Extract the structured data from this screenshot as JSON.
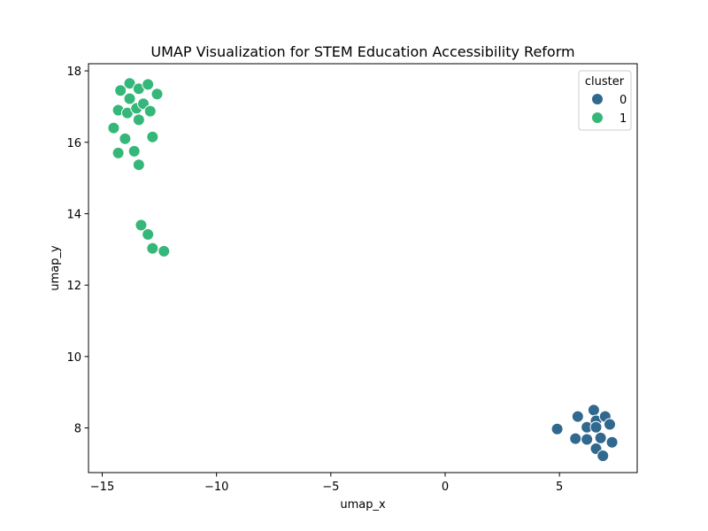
{
  "chart_data": {
    "type": "scatter",
    "title": "UMAP Visualization for STEM Education Accessibility Reform",
    "xlabel": "umap_x",
    "ylabel": "umap_y",
    "xlim": [
      -15.6,
      8.4
    ],
    "ylim": [
      6.75,
      18.2
    ],
    "xticks": [
      -15,
      -10,
      -5,
      0,
      5
    ],
    "xtick_labels": [
      "−15",
      "−10",
      "−5",
      "0",
      "5"
    ],
    "yticks": [
      8,
      10,
      12,
      14,
      16,
      18
    ],
    "ytick_labels": [
      "8",
      "10",
      "12",
      "14",
      "16",
      "18"
    ],
    "grid": false,
    "legend": {
      "title": "cluster",
      "placement": "top-right"
    },
    "series": [
      {
        "name": "0",
        "color": "#31688e",
        "points": [
          [
            4.9,
            7.97
          ],
          [
            5.7,
            7.7
          ],
          [
            5.8,
            8.32
          ],
          [
            6.2,
            8.02
          ],
          [
            6.2,
            7.68
          ],
          [
            6.5,
            8.5
          ],
          [
            6.6,
            8.2
          ],
          [
            6.6,
            8.02
          ],
          [
            6.6,
            7.42
          ],
          [
            6.8,
            7.72
          ],
          [
            6.9,
            7.22
          ],
          [
            7.0,
            8.32
          ],
          [
            7.2,
            8.1
          ],
          [
            7.3,
            7.6
          ]
        ]
      },
      {
        "name": "1",
        "color": "#35b779",
        "points": [
          [
            -14.5,
            16.4
          ],
          [
            -14.3,
            15.7
          ],
          [
            -14.3,
            16.9
          ],
          [
            -14.2,
            17.45
          ],
          [
            -14.0,
            16.1
          ],
          [
            -13.9,
            16.82
          ],
          [
            -13.8,
            17.65
          ],
          [
            -13.8,
            17.22
          ],
          [
            -13.6,
            15.75
          ],
          [
            -13.5,
            16.95
          ],
          [
            -13.4,
            17.5
          ],
          [
            -13.4,
            16.63
          ],
          [
            -13.4,
            15.37
          ],
          [
            -13.2,
            17.08
          ],
          [
            -13.0,
            17.62
          ],
          [
            -12.9,
            16.87
          ],
          [
            -12.8,
            16.15
          ],
          [
            -12.6,
            17.35
          ],
          [
            -13.3,
            13.68
          ],
          [
            -13.0,
            13.42
          ],
          [
            -12.8,
            13.03
          ],
          [
            -12.3,
            12.95
          ]
        ]
      }
    ]
  }
}
